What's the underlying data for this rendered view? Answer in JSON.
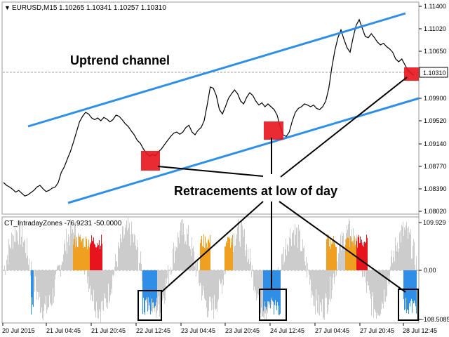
{
  "header": {
    "dropdown_glyph": "▼",
    "symbol_tf": "EURUSD,M15",
    "quotes": "1.10265 1.10341 1.10257 1.10310"
  },
  "annotations": {
    "channel_label": "Uptrend channel",
    "retracement_label": "Retracements at low of day"
  },
  "price_axis": {
    "ticks": [
      "1.11400",
      "1.11020",
      "1.10650",
      "1.10310",
      "1.09900",
      "1.09520",
      "1.09140",
      "1.08770",
      "1.08390",
      "1.08020"
    ],
    "current_price": "1.10310"
  },
  "indicator": {
    "title": "CT_IntradayZones -76.9231 -50.0000",
    "ticks": [
      "109.929",
      "0.00",
      "-108.5085"
    ]
  },
  "time_axis": {
    "labels": [
      "20 Jul 2015",
      "21 Jul 04:45",
      "21 Jul 20:45",
      "22 Jul 12:45",
      "23 Jul 04:45",
      "23 Jul 20:45",
      "24 Jul 12:45",
      "27 Jul 04:45",
      "27 Jul 20:45",
      "28 Jul 12:45"
    ]
  },
  "chart_data": {
    "type": "line",
    "series": [
      {
        "values": [
          1.084,
          1.0835,
          1.0832,
          1.0828,
          1.0823,
          1.0826,
          1.0821,
          1.0816,
          1.0818,
          1.0822,
          1.0826,
          1.0832,
          1.0835,
          1.0829,
          1.0824,
          1.0826,
          1.083,
          1.0832,
          1.084,
          1.0858,
          1.0868,
          1.0882,
          1.0895,
          1.0912,
          1.093,
          1.0948,
          1.0958,
          1.0965,
          1.0962,
          1.0955,
          1.0952,
          1.0955,
          1.095,
          1.0956,
          1.0953,
          1.0948,
          1.0952,
          1.096,
          1.0958,
          1.0952,
          1.0945,
          1.094,
          1.0932,
          1.0925,
          1.0915,
          1.091,
          1.09,
          1.0892,
          1.0887,
          1.089,
          1.0888,
          1.0895,
          1.09,
          1.0908,
          1.0915,
          1.0922,
          1.0928,
          1.093,
          1.0926,
          1.093,
          1.0938,
          1.0942,
          1.093,
          1.0925,
          1.0933,
          1.0938,
          1.095,
          1.0978,
          1.101,
          1.1008,
          1.0995,
          1.097,
          1.0962,
          1.0975,
          1.099,
          1.0998,
          1.1005,
          1.0998,
          1.0985,
          1.098,
          1.0992,
          1.1,
          1.0995,
          1.0985,
          1.0978,
          1.0982,
          1.0975,
          1.098,
          1.0975,
          1.097,
          1.096,
          1.094,
          1.0925,
          1.0922,
          1.093,
          1.095,
          1.0965,
          1.0972,
          1.0975,
          1.098,
          1.0978,
          1.0975,
          1.0978,
          1.0972,
          1.097,
          1.0975,
          1.0985,
          1.1008,
          1.1045,
          1.1075,
          1.1098,
          1.1112,
          1.1095,
          1.108,
          1.1072,
          1.1098,
          1.112,
          1.113,
          1.1115,
          1.11,
          1.1098,
          1.1105,
          1.1098,
          1.109,
          1.1085,
          1.1088,
          1.1082,
          1.1078,
          1.1072,
          1.106,
          1.1055,
          1.106,
          1.105,
          1.104,
          1.1035,
          1.1031
        ]
      }
    ],
    "ylim": [
      1.0785,
      1.116
    ]
  }
}
